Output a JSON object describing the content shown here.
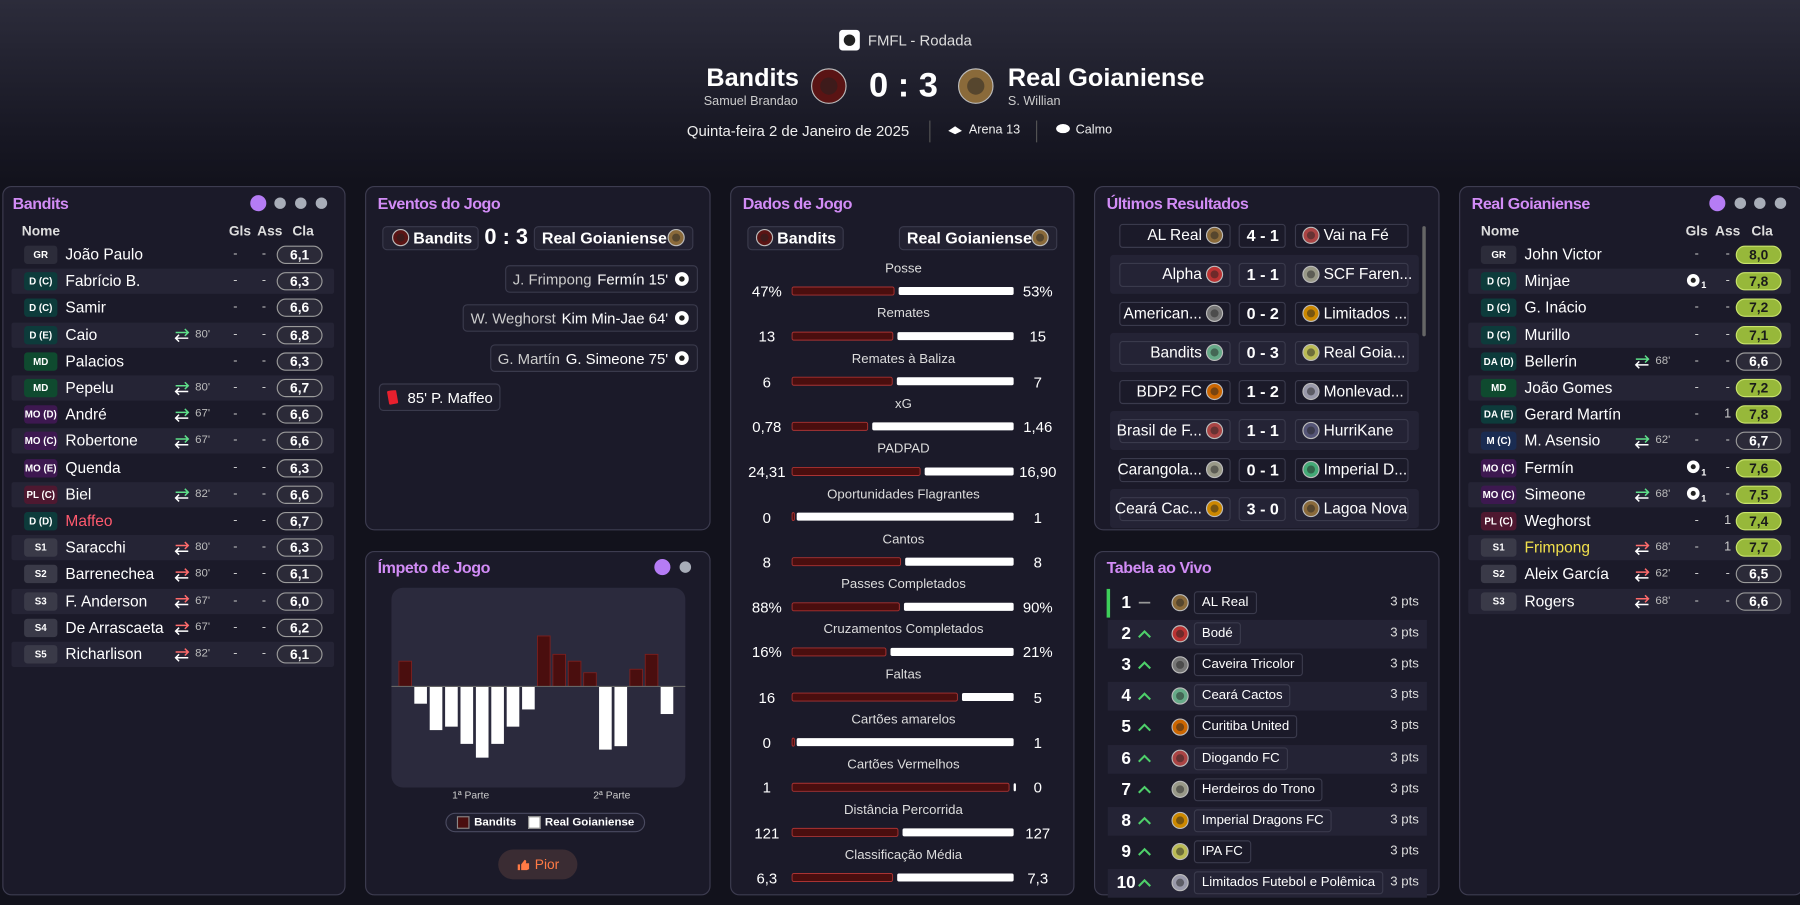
{
  "header": {
    "competition": "FMFL - Rodada",
    "home_team": "Bandits",
    "home_manager": "Samuel Brandao",
    "score": "0 : 3",
    "away_team": "Real Goianiense",
    "away_manager": "S. Willian",
    "date": "Quinta-feira 2 de Janeiro de 2025",
    "venue": "Arena 13",
    "weather": "Calmo"
  },
  "home_lineup": {
    "title": "Bandits",
    "columns": [
      "Nome",
      "Gls",
      "Ass",
      "Cla"
    ],
    "players": [
      {
        "pos": "GR",
        "name": "João Paulo",
        "gls": "-",
        "ass": "-",
        "rating": "6,1"
      },
      {
        "pos": "D (C)",
        "name": "Fabrício B.",
        "gls": "-",
        "ass": "-",
        "rating": "6,3"
      },
      {
        "pos": "D (C)",
        "name": "Samir",
        "gls": "-",
        "ass": "-",
        "rating": "6,6"
      },
      {
        "pos": "D (E)",
        "name": "Caio",
        "sub": "80'",
        "gls": "-",
        "ass": "-",
        "rating": "6,8"
      },
      {
        "pos": "MD",
        "name": "Palacios",
        "gls": "-",
        "ass": "-",
        "rating": "6,3"
      },
      {
        "pos": "MD",
        "name": "Pepelu",
        "sub": "80'",
        "gls": "-",
        "ass": "-",
        "rating": "6,7"
      },
      {
        "pos": "MO (D)",
        "name": "André",
        "sub": "67'",
        "gls": "-",
        "ass": "-",
        "rating": "6,6"
      },
      {
        "pos": "MO (C)",
        "name": "Robertone",
        "sub": "67'",
        "gls": "-",
        "ass": "-",
        "rating": "6,6"
      },
      {
        "pos": "MO (E)",
        "name": "Quenda",
        "gls": "-",
        "ass": "-",
        "rating": "6,3"
      },
      {
        "pos": "PL (C)",
        "name": "Biel",
        "sub": "82'",
        "gls": "-",
        "ass": "-",
        "rating": "6,6"
      },
      {
        "pos": "D (D)",
        "name": "Maffeo",
        "name_color": "#ff5a6e",
        "gls": "-",
        "ass": "-",
        "rating": "6,7"
      },
      {
        "pos": "S1",
        "name": "Saracchi",
        "sub": "80'",
        "gls": "-",
        "ass": "-",
        "rating": "6,3"
      },
      {
        "pos": "S2",
        "name": "Barrenechea",
        "sub": "80'",
        "gls": "-",
        "ass": "-",
        "rating": "6,1"
      },
      {
        "pos": "S3",
        "name": "F. Anderson",
        "sub": "67'",
        "gls": "-",
        "ass": "-",
        "rating": "6,0"
      },
      {
        "pos": "S4",
        "name": "De Arrascaeta",
        "sub": "67'",
        "gls": "-",
        "ass": "-",
        "rating": "6,2"
      },
      {
        "pos": "S5",
        "name": "Richarlison",
        "sub": "82'",
        "gls": "-",
        "ass": "-",
        "rating": "6,1"
      }
    ]
  },
  "events": {
    "title": "Eventos do Jogo",
    "home_team": "Bandits",
    "score": "0 : 3",
    "away_team": "Real Goianiense",
    "goals": [
      {
        "assist": "J. Frimpong",
        "scorer": "Fermín 15'"
      },
      {
        "assist": "W. Weghorst",
        "scorer": "Kim Min-Jae 64'"
      },
      {
        "assist": "G. Martín",
        "scorer": "G. Simeone 75'"
      }
    ],
    "cards": [
      {
        "text": "85' P. Maffeo"
      }
    ]
  },
  "momentum": {
    "title": "Ímpeto de Jogo",
    "values": [
      22,
      -15,
      -38,
      -35,
      -50,
      -62,
      -50,
      -35,
      -20,
      44,
      28,
      22,
      12,
      -55,
      -52,
      15,
      28,
      -24
    ],
    "halves": [
      "1ª Parte",
      "2ª Parte"
    ],
    "legend": [
      {
        "name": "Bandits",
        "color": "#4a0e0e"
      },
      {
        "name": "Real Goianiense",
        "color": "#ffffff"
      }
    ],
    "button": "Pior"
  },
  "stats": {
    "title": "Dados de Jogo",
    "home_team": "Bandits",
    "away_team": "Real Goianiense",
    "rows": [
      {
        "name": "Posse",
        "home": 47,
        "away": 53,
        "home_label": "47%",
        "away_label": "53%"
      },
      {
        "name": "Remates",
        "home": 13,
        "away": 15
      },
      {
        "name": "Remates à Baliza",
        "home": 6,
        "away": 7
      },
      {
        "name": "xG",
        "home": 0.78,
        "away": 1.46,
        "home_label": "0,78",
        "away_label": "1,46"
      },
      {
        "name": "PADPAD",
        "home": 24.31,
        "away": 16.9,
        "home_label": "24,31",
        "away_label": "16,90"
      },
      {
        "name": "Oportunidades Flagrantes",
        "home": 0,
        "away": 1
      },
      {
        "name": "Cantos",
        "home": 8,
        "away": 8
      },
      {
        "name": "Passes Completados",
        "home": 88,
        "away": 90,
        "home_label": "88%",
        "away_label": "90%"
      },
      {
        "name": "Cruzamentos Completados",
        "home": 16,
        "away": 21,
        "home_label": "16%",
        "away_label": "21%"
      },
      {
        "name": "Faltas",
        "home": 16,
        "away": 5
      },
      {
        "name": "Cartões amarelos",
        "home": 0,
        "away": 1
      },
      {
        "name": "Cartões Vermelhos",
        "home": 1,
        "away": 0
      },
      {
        "name": "Distância Percorrida",
        "home": 121,
        "away": 127
      },
      {
        "name": "Classificação Média",
        "home": 6.3,
        "away": 7.3,
        "home_label": "6,3",
        "away_label": "7,3"
      }
    ]
  },
  "results": {
    "title": "Últimos Resultados",
    "rows": [
      {
        "home": "AL Real",
        "score": "4 - 1",
        "away": "Vai na Fé"
      },
      {
        "home": "Alpha",
        "score": "1 - 1",
        "away": "SCF Faren..."
      },
      {
        "home": "American...",
        "score": "0 - 2",
        "away": "Limitados ..."
      },
      {
        "home": "Bandits",
        "score": "0 - 3",
        "away": "Real Goia..."
      },
      {
        "home": "BDP2 FC",
        "score": "1 - 2",
        "away": "Monlevad..."
      },
      {
        "home": "Brasil de F...",
        "score": "1 - 1",
        "away": "HurriKane"
      },
      {
        "home": "Carangola...",
        "score": "0 - 1",
        "away": "Imperial D..."
      },
      {
        "home": "Ceará Cac...",
        "score": "3 - 0",
        "away": "Lagoa Nova"
      }
    ]
  },
  "table": {
    "title": "Tabela ao Vivo",
    "rows": [
      {
        "pos": 1,
        "team": "AL Real",
        "pts": "3 pts"
      },
      {
        "pos": 2,
        "team": "Bodé",
        "pts": "3 pts"
      },
      {
        "pos": 3,
        "team": "Caveira Tricolor",
        "pts": "3 pts"
      },
      {
        "pos": 4,
        "team": "Ceará Cactos",
        "pts": "3 pts"
      },
      {
        "pos": 5,
        "team": "Curitiba United",
        "pts": "3 pts"
      },
      {
        "pos": 6,
        "team": "Diogando FC",
        "pts": "3 pts"
      },
      {
        "pos": 7,
        "team": "Herdeiros do Trono",
        "pts": "3 pts"
      },
      {
        "pos": 8,
        "team": "Imperial Dragons FC",
        "pts": "3 pts"
      },
      {
        "pos": 9,
        "team": "IPA FC",
        "pts": "3 pts"
      },
      {
        "pos": 10,
        "team": "Limitados Futebol e Polêmica",
        "pts": "3 pts"
      }
    ]
  },
  "away_lineup": {
    "title": "Real Goianiense",
    "columns": [
      "Nome",
      "Gls",
      "Ass",
      "Cla"
    ],
    "players": [
      {
        "pos": "GR",
        "name": "John Victor",
        "gls": "-",
        "ass": "-",
        "rating": "8,0"
      },
      {
        "pos": "D (C)",
        "name": "Minjae",
        "gls": "1",
        "ass": "-",
        "rating": "7,8"
      },
      {
        "pos": "D (C)",
        "name": "G. Inácio",
        "gls": "-",
        "ass": "-",
        "rating": "7,2"
      },
      {
        "pos": "D (C)",
        "name": "Murillo",
        "gls": "-",
        "ass": "-",
        "rating": "7,1"
      },
      {
        "pos": "DA (D)",
        "name": "Bellerín",
        "sub": "68'",
        "gls": "-",
        "ass": "-",
        "rating": "6,6"
      },
      {
        "pos": "MD",
        "name": "João Gomes",
        "gls": "-",
        "ass": "-",
        "rating": "7,2"
      },
      {
        "pos": "DA (E)",
        "name": "Gerard Martín",
        "gls": "-",
        "ass": "1",
        "rating": "7,8"
      },
      {
        "pos": "M (C)",
        "name": "M. Asensio",
        "sub": "62'",
        "gls": "-",
        "ass": "-",
        "rating": "6,7"
      },
      {
        "pos": "MO (C)",
        "name": "Fermín",
        "gls": "1",
        "ass": "-",
        "rating": "7,6"
      },
      {
        "pos": "MO (C)",
        "name": "Simeone",
        "sub": "68'",
        "gls": "1",
        "ass": "-",
        "rating": "7,5"
      },
      {
        "pos": "PL (C)",
        "name": "Weghorst",
        "gls": "-",
        "ass": "1",
        "rating": "7,4"
      },
      {
        "pos": "S1",
        "name": "Frimpong",
        "name_color": "#f2e14c",
        "sub": "68'",
        "gls": "-",
        "ass": "1",
        "rating": "7,7"
      },
      {
        "pos": "S2",
        "name": "Aleix García",
        "sub": "62'",
        "gls": "-",
        "ass": "-",
        "rating": "6,5"
      },
      {
        "pos": "S3",
        "name": "Rogers",
        "sub": "68'",
        "gls": "-",
        "ass": "-",
        "rating": "6,6"
      }
    ]
  }
}
